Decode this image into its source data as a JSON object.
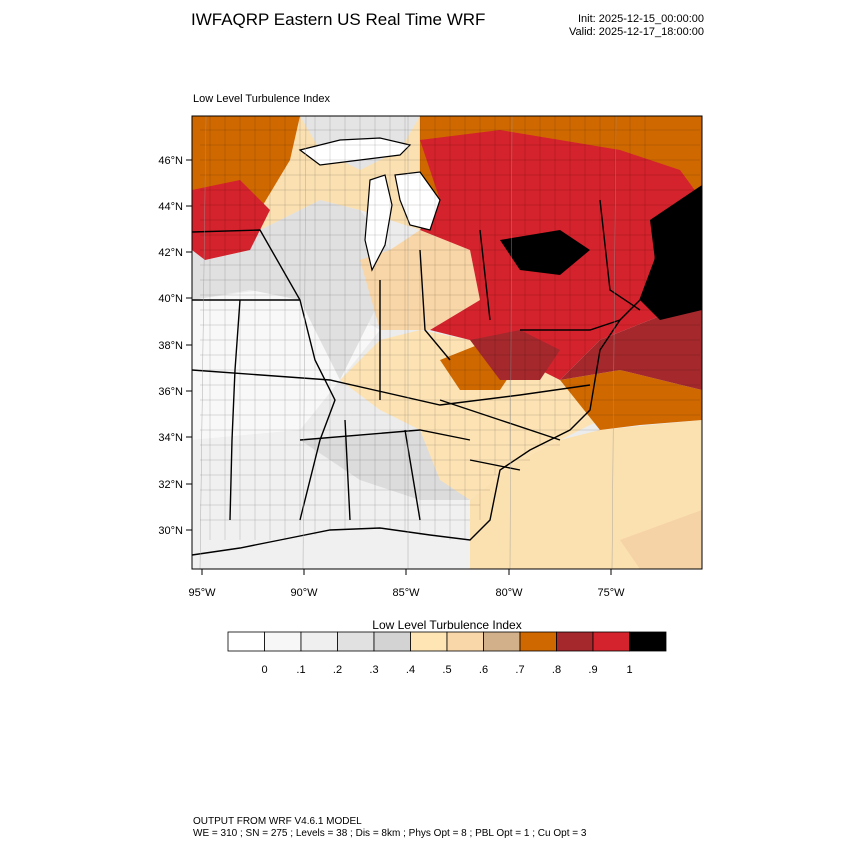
{
  "header": {
    "title": "IWFAQRP Eastern US Real Time WRF",
    "init": "Init: 2025-12-15_00:00:00",
    "valid": "Valid: 2025-12-17_18:00:00"
  },
  "panel": {
    "label": "Low Level Turbulence Index"
  },
  "map": {
    "lat_labels": [
      "46°N",
      "44°N",
      "42°N",
      "40°N",
      "38°N",
      "36°N",
      "34°N",
      "32°N",
      "30°N"
    ],
    "lon_labels": [
      "95°W",
      "90°W",
      "85°W",
      "80°W",
      "75°W"
    ]
  },
  "colorbar": {
    "title": "Low Level Turbulence Index",
    "colors": [
      "#ffffff",
      "#f7f7f7",
      "#efefef",
      "#e1e1e1",
      "#d3d3d3",
      "#ffe4b4",
      "#fad7a8",
      "#d2b08a",
      "#d06800",
      "#a4282c",
      "#d4232c",
      "#000000"
    ],
    "labels": [
      "0",
      ".1",
      ".2",
      ".3",
      ".4",
      ".5",
      ".6",
      ".7",
      ".8",
      ".9",
      "1"
    ]
  },
  "footer": {
    "line1": "OUTPUT FROM WRF V4.6.1 MODEL",
    "line2": "WE = 310 ; SN = 275 ; Levels = 38 ; Dis = 8km ; Phys Opt = 8 ; PBL Opt = 1 ; Cu Opt = 3"
  }
}
